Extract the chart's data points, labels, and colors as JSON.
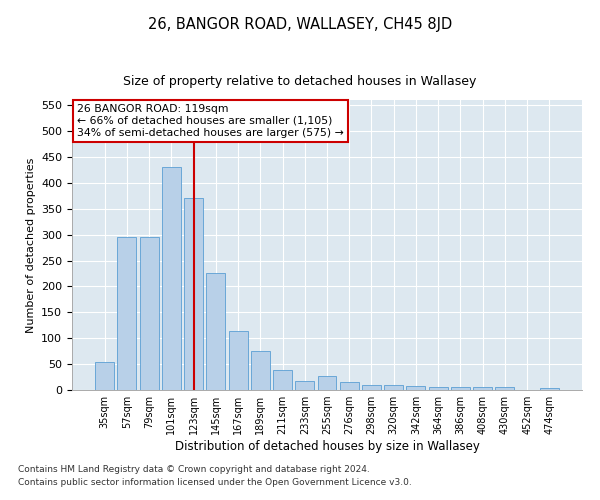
{
  "title": "26, BANGOR ROAD, WALLASEY, CH45 8JD",
  "subtitle": "Size of property relative to detached houses in Wallasey",
  "xlabel": "Distribution of detached houses by size in Wallasey",
  "ylabel": "Number of detached properties",
  "categories": [
    "35sqm",
    "57sqm",
    "79sqm",
    "101sqm",
    "123sqm",
    "145sqm",
    "167sqm",
    "189sqm",
    "211sqm",
    "233sqm",
    "255sqm",
    "276sqm",
    "298sqm",
    "320sqm",
    "342sqm",
    "364sqm",
    "386sqm",
    "408sqm",
    "430sqm",
    "452sqm",
    "474sqm"
  ],
  "values": [
    55,
    295,
    295,
    430,
    370,
    225,
    113,
    75,
    38,
    17,
    27,
    15,
    10,
    10,
    8,
    5,
    5,
    5,
    5,
    0,
    3
  ],
  "bar_color": "#b8d0e8",
  "bar_edge_color": "#5a9fd4",
  "red_line_index": 4,
  "red_line_color": "#cc0000",
  "annotation_text": "26 BANGOR ROAD: 119sqm\n← 66% of detached houses are smaller (1,105)\n34% of semi-detached houses are larger (575) →",
  "annotation_box_color": "#ffffff",
  "annotation_box_edge": "#cc0000",
  "ylim": [
    0,
    560
  ],
  "yticks": [
    0,
    50,
    100,
    150,
    200,
    250,
    300,
    350,
    400,
    450,
    500,
    550
  ],
  "bg_color": "#dde8f0",
  "footnote1": "Contains HM Land Registry data © Crown copyright and database right 2024.",
  "footnote2": "Contains public sector information licensed under the Open Government Licence v3.0."
}
